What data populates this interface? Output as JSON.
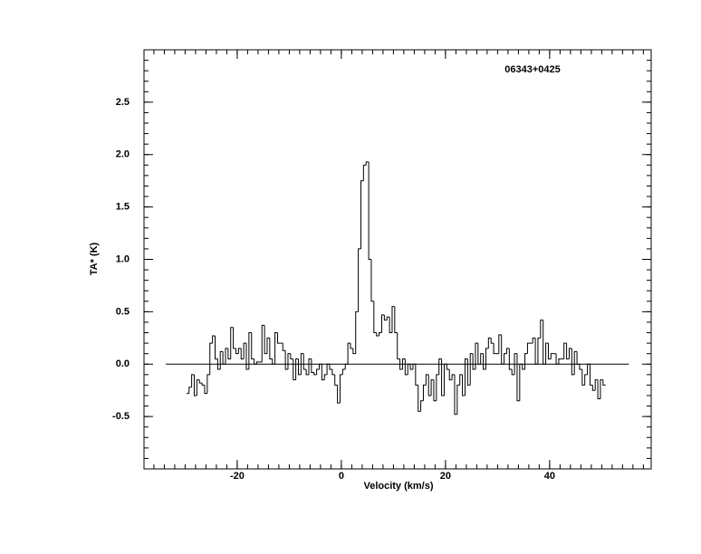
{
  "chart_data": {
    "type": "line",
    "step": "mid",
    "annotation": "06343+0425",
    "xlabel": "Velocity (km/s)",
    "ylabel": "TA* (K)",
    "xlim": [
      -37.9,
      59.5
    ],
    "ylim": [
      -1.0,
      3.0
    ],
    "xticks": [
      -20,
      0,
      20,
      40
    ],
    "yticks": [
      -0.5,
      {
        "value": 0,
        "label": "0.0"
      },
      0.5,
      {
        "value": 1,
        "label": "1.0"
      },
      1.5,
      {
        "value": 2,
        "label": "2.0"
      },
      2.5
    ],
    "xminor": 2,
    "yminor": 0.1,
    "baseline": {
      "y": 0,
      "x": [
        -33.7,
        55.2
      ]
    },
    "color": "#000000",
    "x": [
      -29.5,
      -29,
      -28.5,
      -28,
      -27.5,
      -27,
      -26.5,
      -26,
      -25.5,
      -25,
      -24.5,
      -24,
      -23.5,
      -23,
      -22.5,
      -22,
      -21.5,
      -21,
      -20.5,
      -20,
      -19.5,
      -19,
      -18.5,
      -18,
      -17.5,
      -17,
      -16.5,
      -16,
      -15.5,
      -15,
      -14.5,
      -14,
      -13.5,
      -13,
      -12.5,
      -12,
      -11.5,
      -11,
      -10.5,
      -10,
      -9.5,
      -9,
      -8.5,
      -8,
      -7.5,
      -7,
      -6.5,
      -6,
      -5.5,
      -5,
      -4.5,
      -4,
      -3.5,
      -3,
      -2.5,
      -2,
      -1.5,
      -1,
      -0.5,
      0,
      0.5,
      1,
      1.5,
      2,
      2.5,
      3,
      3.5,
      4,
      4.5,
      5,
      5.5,
      6,
      6.5,
      7,
      7.5,
      8,
      8.5,
      9,
      9.5,
      10,
      10.5,
      11,
      11.5,
      12,
      12.5,
      13,
      13.5,
      14,
      14.5,
      15,
      15.5,
      16,
      16.5,
      17,
      17.5,
      18,
      18.5,
      19,
      19.5,
      20,
      20.5,
      21,
      21.5,
      22,
      22.5,
      23,
      23.5,
      24,
      24.5,
      25,
      25.5,
      26,
      26.5,
      27,
      27.5,
      28,
      28.5,
      29,
      29.5,
      30,
      30.5,
      31,
      31.5,
      32,
      32.5,
      33,
      33.5,
      34,
      34.5,
      35,
      35.5,
      36,
      36.5,
      37,
      37.5,
      38,
      38.5,
      39,
      39.5,
      40,
      40.5,
      41,
      41.5,
      42,
      42.5,
      43,
      43.5,
      44,
      44.5,
      45,
      45.5,
      46,
      46.5,
      47,
      47.5,
      48,
      48.5,
      49,
      49.5,
      50,
      50.5
    ],
    "values": [
      -0.28,
      -0.22,
      -0.1,
      -0.3,
      -0.15,
      -0.18,
      -0.2,
      -0.28,
      -0.1,
      0.2,
      0.27,
      0.05,
      -0.05,
      0.12,
      0.0,
      0.15,
      0.05,
      0.35,
      0.15,
      0.1,
      0.15,
      0.05,
      0.2,
      -0.05,
      0.3,
      0.05,
      0.0,
      0.02,
      0.02,
      0.37,
      0.1,
      0.25,
      0.05,
      0.0,
      0.3,
      0.2,
      0.2,
      0.13,
      -0.05,
      0.1,
      0.05,
      -0.15,
      0.05,
      -0.1,
      0.1,
      -0.05,
      -0.1,
      0.05,
      -0.08,
      -0.1,
      -0.05,
      0.0,
      -0.15,
      -0.1,
      0.0,
      -0.05,
      -0.1,
      -0.2,
      -0.37,
      -0.1,
      -0.05,
      0.0,
      0.2,
      0.15,
      0.1,
      0.5,
      1.1,
      1.75,
      1.9,
      1.93,
      1.0,
      0.6,
      0.3,
      0.27,
      0.3,
      0.47,
      0.42,
      0.45,
      0.3,
      0.55,
      0.3,
      0.05,
      -0.05,
      0.05,
      -0.1,
      0.0,
      -0.05,
      0.0,
      -0.2,
      -0.45,
      -0.35,
      -0.2,
      -0.1,
      -0.3,
      -0.15,
      -0.35,
      -0.1,
      0.05,
      -0.3,
      0.0,
      -0.05,
      -0.15,
      -0.1,
      -0.48,
      -0.2,
      -0.1,
      -0.3,
      0.05,
      -0.2,
      0.1,
      -0.05,
      0.2,
      0.0,
      0.1,
      -0.05,
      0.15,
      0.25,
      0.2,
      0.1,
      0.1,
      0.28,
      0.0,
      0.1,
      0.15,
      -0.05,
      -0.1,
      0.1,
      -0.35,
      0.0,
      -0.05,
      0.1,
      0.2,
      0.2,
      0.25,
      0.0,
      0.25,
      0.42,
      0.0,
      0.2,
      0.05,
      0.1,
      0.1,
      0.0,
      0.05,
      0.05,
      0.2,
      0.05,
      0.15,
      -0.1,
      0.12,
      0.0,
      -0.05,
      -0.2,
      -0.1,
      0.0,
      -0.2,
      -0.25,
      -0.15,
      -0.33,
      -0.15,
      -0.2
    ]
  }
}
